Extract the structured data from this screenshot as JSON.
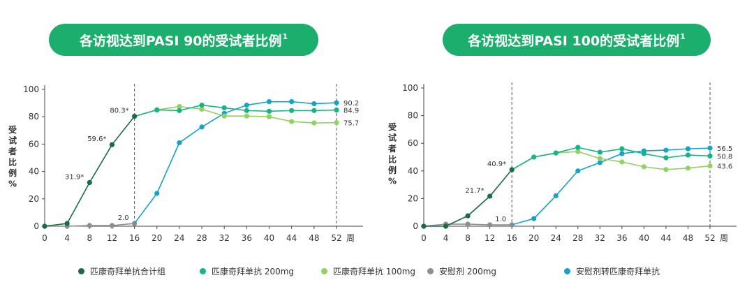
{
  "titles": {
    "left": "各访视达到PASI 90的受试者比例",
    "right": "各访视达到PASI 100的受试者比例",
    "footnote_mark": "1"
  },
  "colors": {
    "combined": "#1b6b45",
    "dose200": "#12b583",
    "dose100": "#93d162",
    "placebo": "#8e8e8e",
    "switch": "#15a3c7",
    "pill": "#1bae6c"
  },
  "legend": [
    {
      "key": "combined",
      "label": "匹康奇拜单抗合计组"
    },
    {
      "key": "dose200",
      "label": "匹康奇拜单抗 200mg"
    },
    {
      "key": "dose100",
      "label": "匹康奇拜单抗 100mg"
    },
    {
      "key": "placebo",
      "label": "安慰剂 200mg"
    },
    {
      "key": "switch",
      "label": "安慰剂转匹康奇拜单抗"
    }
  ],
  "chart_data": [
    {
      "type": "line",
      "title": "各访视达到PASI 90的受试者比例",
      "ylabel": "受试者比例%",
      "xunit": "周",
      "ylim": [
        0,
        100
      ],
      "yticks": [
        0,
        20,
        40,
        60,
        80,
        100
      ],
      "xticks": [
        0,
        4,
        8,
        12,
        16,
        20,
        24,
        28,
        32,
        36,
        40,
        44,
        48,
        52
      ],
      "reference_lines_x": [
        16,
        52
      ],
      "series": [
        {
          "key": "combined",
          "name": "匹康奇拜单抗合计组",
          "x": [
            0,
            4,
            8,
            12,
            16
          ],
          "y": [
            0,
            2,
            31.9,
            59.6,
            80.3
          ]
        },
        {
          "key": "dose200",
          "name": "匹康奇拜单抗 200mg",
          "x": [
            16,
            20,
            24,
            28,
            32,
            36,
            40,
            44,
            48,
            52
          ],
          "y": [
            80.3,
            85,
            84.5,
            88.5,
            86.5,
            84.5,
            84,
            84.5,
            84.5,
            84.9
          ]
        },
        {
          "key": "dose100",
          "name": "匹康奇拜单抗 100mg",
          "x": [
            16,
            20,
            24,
            28,
            32,
            36,
            40,
            44,
            48,
            52
          ],
          "y": [
            80.3,
            85,
            87.5,
            85.5,
            80.5,
            80.5,
            80,
            76.5,
            75.5,
            75.7
          ]
        },
        {
          "key": "placebo",
          "name": "安慰剂 200mg",
          "x": [
            0,
            4,
            8,
            12,
            16
          ],
          "y": [
            0,
            0,
            0.5,
            0.5,
            2.0
          ]
        },
        {
          "key": "switch",
          "name": "安慰剂转匹康奇拜单抗",
          "x": [
            16,
            20,
            24,
            28,
            32,
            36,
            40,
            44,
            48,
            52
          ],
          "y": [
            2.0,
            24,
            61,
            72.5,
            82.5,
            88.5,
            91,
            91,
            89.5,
            90.2
          ]
        }
      ],
      "annotations": [
        {
          "x": 8,
          "y": 31.9,
          "text": "31.9*"
        },
        {
          "x": 12,
          "y": 59.6,
          "text": "59.6*"
        },
        {
          "x": 16,
          "y": 80.3,
          "text": "80.3*"
        },
        {
          "x": 16,
          "y": 2.0,
          "text": "2.0"
        }
      ],
      "end_labels": [
        {
          "series": "switch",
          "text": "90.2"
        },
        {
          "series": "dose200",
          "text": "84.9"
        },
        {
          "series": "dose100",
          "text": "75.7"
        }
      ]
    },
    {
      "type": "line",
      "title": "各访视达到PASI 100的受试者比例",
      "ylabel": "受试者比例%",
      "xunit": "周",
      "ylim": [
        0,
        100
      ],
      "yticks": [
        0,
        20,
        40,
        60,
        80,
        100
      ],
      "xticks": [
        0,
        4,
        8,
        12,
        16,
        20,
        24,
        28,
        32,
        36,
        40,
        44,
        48,
        52
      ],
      "reference_lines_x": [
        16,
        52
      ],
      "series": [
        {
          "key": "combined",
          "name": "匹康奇拜单抗合计组",
          "x": [
            0,
            4,
            8,
            12,
            16
          ],
          "y": [
            0,
            0,
            7.5,
            21.7,
            40.9
          ]
        },
        {
          "key": "dose200",
          "name": "匹康奇拜单抗 200mg",
          "x": [
            16,
            20,
            24,
            28,
            32,
            36,
            40,
            44,
            48,
            52
          ],
          "y": [
            40.9,
            50,
            53,
            57,
            53.5,
            56,
            52.5,
            49.5,
            51.5,
            50.8
          ]
        },
        {
          "key": "dose100",
          "name": "匹康奇拜单抗 100mg",
          "x": [
            16,
            20,
            24,
            28,
            32,
            36,
            40,
            44,
            48,
            52
          ],
          "y": [
            40.9,
            50,
            53,
            54,
            49,
            46.5,
            43,
            41,
            42,
            43.6
          ]
        },
        {
          "key": "placebo",
          "name": "安慰剂 200mg",
          "x": [
            0,
            4,
            8,
            12,
            16
          ],
          "y": [
            0,
            1.5,
            1.5,
            1.0,
            1.0
          ]
        },
        {
          "key": "switch",
          "name": "安慰剂转匹康奇拜单抗",
          "x": [
            16,
            20,
            24,
            28,
            32,
            36,
            40,
            44,
            48,
            52
          ],
          "y": [
            1.0,
            5.5,
            22,
            40,
            46,
            52.5,
            54.5,
            55,
            56,
            56.5
          ]
        }
      ],
      "annotations": [
        {
          "x": 12,
          "y": 21.7,
          "text": "21.7*"
        },
        {
          "x": 16,
          "y": 40.9,
          "text": "40.9*"
        },
        {
          "x": 16,
          "y": 1.0,
          "text": "1.0"
        }
      ],
      "end_labels": [
        {
          "series": "switch",
          "text": "56.5"
        },
        {
          "series": "dose200",
          "text": "50.8"
        },
        {
          "series": "dose100",
          "text": "43.6"
        }
      ]
    }
  ]
}
